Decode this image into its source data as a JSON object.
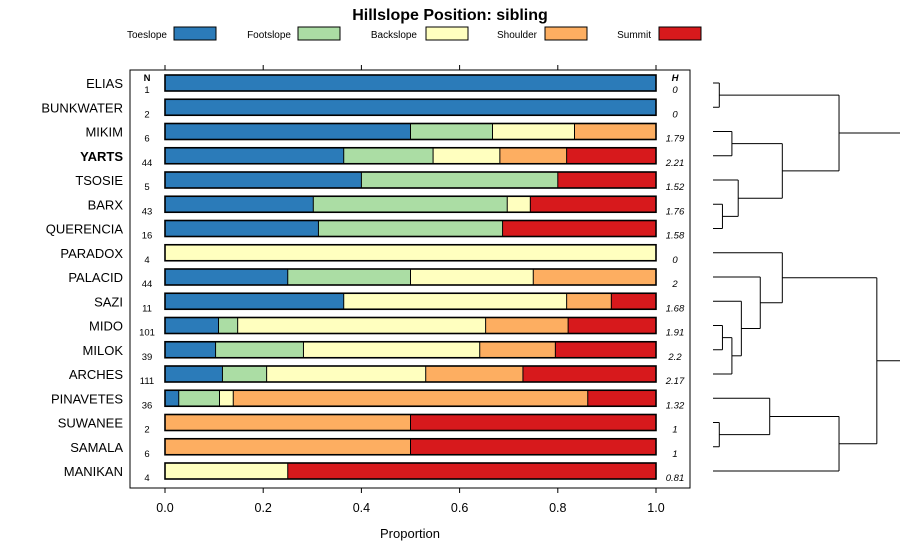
{
  "chart_data": {
    "type": "bar",
    "subtype": "stacked-horizontal-proportion",
    "title": "Hillslope Position: sibling",
    "xlabel": "Proportion",
    "ylabel": "",
    "xlim": [
      0,
      1
    ],
    "xticks": [
      "0.0",
      "0.2",
      "0.4",
      "0.6",
      "0.8",
      "1.0"
    ],
    "xtick_values": [
      0,
      0.2,
      0.4,
      0.6,
      0.8,
      1.0
    ],
    "n_header": "N",
    "h_header": "H",
    "highlight_row": "YARTS",
    "legend_position": "top",
    "series": [
      {
        "name": "Toeslope",
        "color": "#2b7bb9"
      },
      {
        "name": "Footslope",
        "color": "#abdda4"
      },
      {
        "name": "Backslope",
        "color": "#ffffbf"
      },
      {
        "name": "Shoulder",
        "color": "#fdae61"
      },
      {
        "name": "Summit",
        "color": "#d7191c"
      }
    ],
    "rows": [
      {
        "name": "ELIAS",
        "n": "1",
        "h": "0",
        "values": [
          1.0,
          0,
          0,
          0,
          0
        ]
      },
      {
        "name": "BUNKWATER",
        "n": "2",
        "h": "0",
        "values": [
          1.0,
          0,
          0,
          0,
          0
        ]
      },
      {
        "name": "MIKIM",
        "n": "6",
        "h": "1.79",
        "values": [
          0.5,
          0.167,
          0.167,
          0.166,
          0
        ]
      },
      {
        "name": "YARTS",
        "n": "44",
        "h": "2.21",
        "values": [
          0.364,
          0.182,
          0.136,
          0.136,
          0.182
        ]
      },
      {
        "name": "TSOSIE",
        "n": "5",
        "h": "1.52",
        "values": [
          0.4,
          0.4,
          0,
          0,
          0.2
        ]
      },
      {
        "name": "BARX",
        "n": "43",
        "h": "1.76",
        "values": [
          0.302,
          0.395,
          0.047,
          0,
          0.256
        ]
      },
      {
        "name": "QUERENCIA",
        "n": "16",
        "h": "1.58",
        "values": [
          0.3125,
          0.375,
          0,
          0,
          0.3125
        ]
      },
      {
        "name": "PARADOX",
        "n": "4",
        "h": "0",
        "values": [
          0,
          0,
          1.0,
          0,
          0
        ]
      },
      {
        "name": "PALACID",
        "n": "44",
        "h": "2",
        "values": [
          0.25,
          0.25,
          0.25,
          0.25,
          0
        ]
      },
      {
        "name": "SAZI",
        "n": "11",
        "h": "1.68",
        "values": [
          0.364,
          0,
          0.454,
          0.091,
          0.091
        ]
      },
      {
        "name": "MIDO",
        "n": "101",
        "h": "1.91",
        "values": [
          0.109,
          0.039,
          0.505,
          0.168,
          0.179
        ]
      },
      {
        "name": "MILOK",
        "n": "39",
        "h": "2.2",
        "values": [
          0.103,
          0.179,
          0.359,
          0.154,
          0.205
        ]
      },
      {
        "name": "ARCHES",
        "n": "111",
        "h": "2.17",
        "values": [
          0.117,
          0.09,
          0.324,
          0.198,
          0.271
        ]
      },
      {
        "name": "PINAVETES",
        "n": "36",
        "h": "1.32",
        "values": [
          0.028,
          0.083,
          0.028,
          0.722,
          0.139
        ]
      },
      {
        "name": "SUWANEE",
        "n": "2",
        "h": "1",
        "values": [
          0,
          0,
          0,
          0.5,
          0.5
        ]
      },
      {
        "name": "SAMALA",
        "n": "6",
        "h": "1",
        "values": [
          0,
          0,
          0,
          0.5,
          0.5
        ]
      },
      {
        "name": "MANIKAN",
        "n": "4",
        "h": "0.81",
        "values": [
          0,
          0,
          0.25,
          0,
          0.75
        ]
      }
    ],
    "dendrogram": {
      "side": "right",
      "merges": [
        [
          0,
          1,
          0.02
        ],
        [
          2,
          3,
          0.06
        ],
        [
          5,
          6,
          0.03
        ],
        [
          4,
          -3,
          0.08
        ],
        [
          -2,
          -4,
          0.22
        ],
        [
          -1,
          -5,
          0.4
        ],
        [
          10,
          11,
          0.03
        ],
        [
          -7,
          12,
          0.06
        ],
        [
          9,
          -8,
          0.09
        ],
        [
          8,
          -9,
          0.15
        ],
        [
          7,
          -10,
          0.22
        ],
        [
          14,
          15,
          0.02
        ],
        [
          13,
          -12,
          0.18
        ],
        [
          -13,
          16,
          0.4
        ],
        [
          -11,
          -14,
          0.52
        ],
        [
          -6,
          -15,
          0.73
        ]
      ]
    }
  }
}
